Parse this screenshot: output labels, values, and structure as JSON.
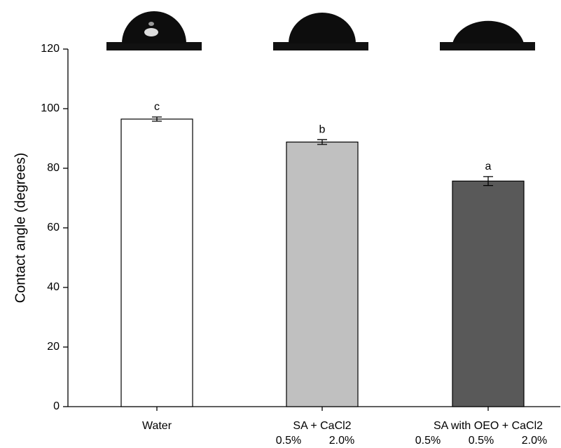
{
  "chart_data": {
    "type": "bar",
    "y_label": "Contact angle (degrees)",
    "categories": [
      "Water",
      "SA + CaCl2",
      "SA with OEO + CaCl2"
    ],
    "concentrations": [
      [],
      [
        "0.5%",
        "2.0%"
      ],
      [
        "0.5%",
        "0.5%",
        "2.0%"
      ]
    ],
    "values": [
      96.5,
      88.8,
      75.7
    ],
    "errors": [
      0.7,
      0.8,
      1.5
    ],
    "significance_letters": [
      "c",
      "b",
      "a"
    ],
    "colors": [
      "#ffffff",
      "#c0c0c0",
      "#595959"
    ],
    "ylim": [
      0,
      120
    ],
    "yticks": [
      0,
      20,
      40,
      60,
      80,
      100,
      120
    ]
  }
}
